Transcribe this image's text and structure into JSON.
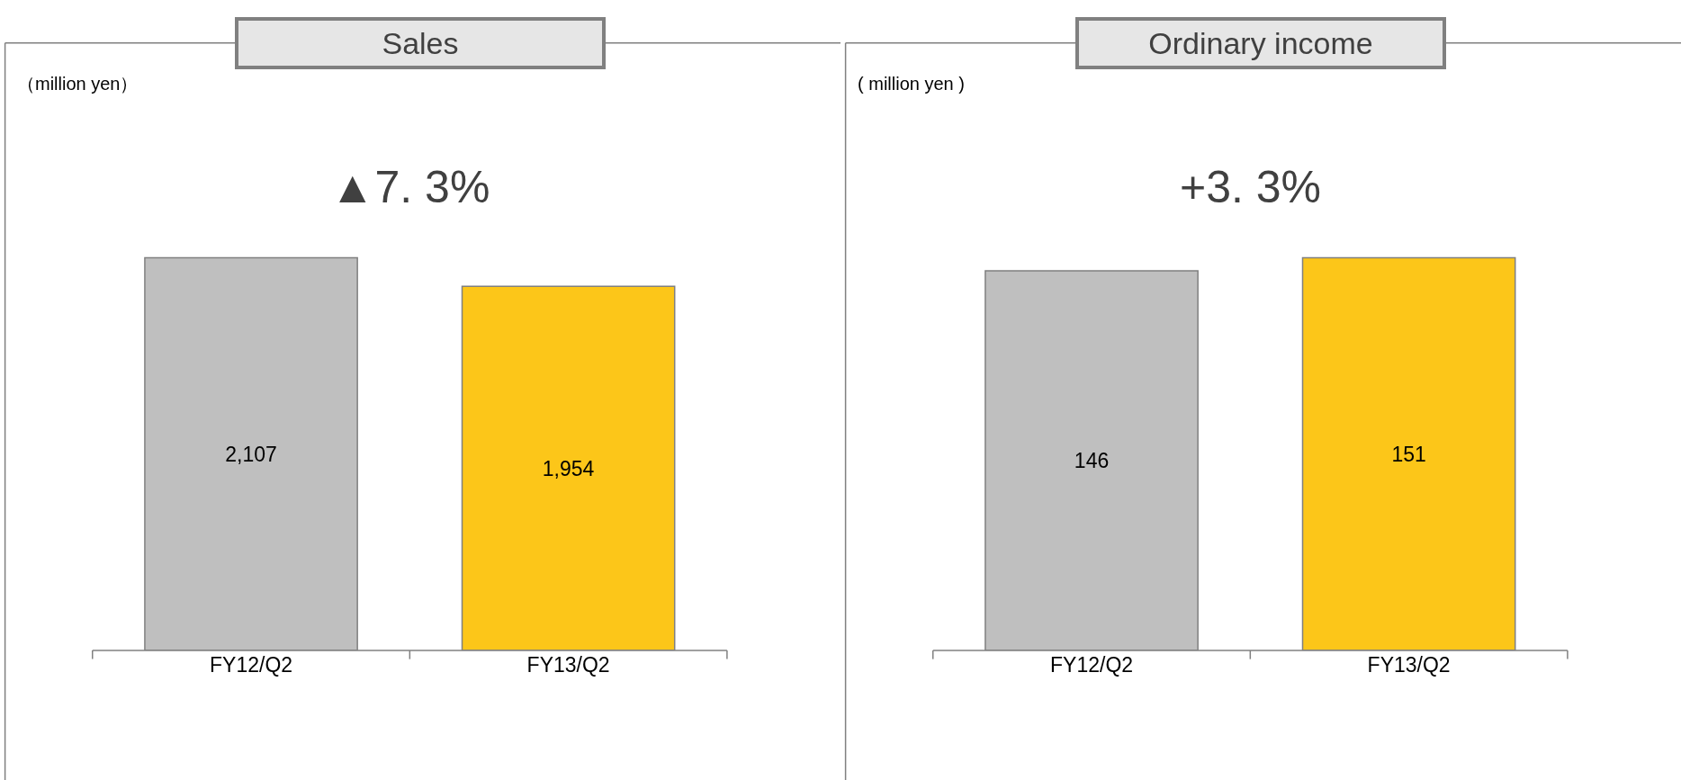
{
  "chart_data": [
    {
      "type": "bar",
      "title": "Sales",
      "categories": [
        "FY12/Q2",
        "FY13/Q2"
      ],
      "values": [
        2107,
        1954
      ],
      "value_labels": [
        "2,107",
        "1,954"
      ],
      "colors": [
        "#bfbfbf",
        "#fcc619"
      ],
      "tick_labels": "x",
      "annotations": [
        "（million yen）",
        "▲7. 3%"
      ]
    },
    {
      "type": "bar",
      "title": "Ordinary income",
      "categories": [
        "FY12/Q2",
        "FY13/Q2"
      ],
      "values": [
        146,
        151
      ],
      "value_labels": [
        "146",
        "151"
      ],
      "colors": [
        "#bfbfbf",
        "#fcc619"
      ],
      "tick_labels": "x",
      "annotations": [
        "( million yen )",
        "+3. 3%"
      ]
    }
  ]
}
